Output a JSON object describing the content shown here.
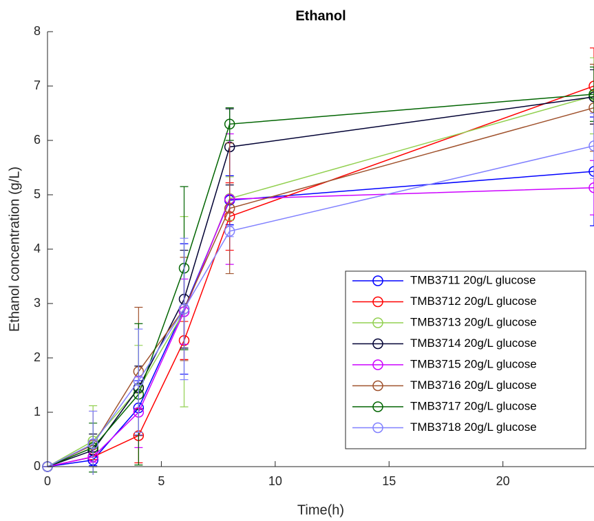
{
  "chart_data": {
    "type": "line",
    "title": "Ethanol",
    "x_label": "Time(h)",
    "y_label": "Ethanol concentration (g/L)",
    "x": [
      0,
      2,
      4,
      6,
      8,
      24
    ],
    "xlim": [
      0,
      24
    ],
    "xticks": [
      0,
      5,
      10,
      15,
      20
    ],
    "ylim": [
      0,
      8
    ],
    "yticks": [
      0,
      1,
      2,
      3,
      4,
      5,
      6,
      7,
      8
    ],
    "legend": "lower right",
    "series": [
      {
        "name": "TMB3711 20g/L glucose",
        "color": "#0000ff",
        "values": [
          0,
          0.12,
          1.08,
          2.9,
          4.9,
          5.43
        ],
        "errors": [
          0,
          0.1,
          0.5,
          1.2,
          0.45,
          1.0
        ]
      },
      {
        "name": "TMB3712 20g/L glucose",
        "color": "#ff0000",
        "values": [
          0,
          0.18,
          0.57,
          2.32,
          4.6,
          7.0
        ],
        "errors": [
          0,
          0.05,
          0.5,
          0.35,
          0.62,
          0.7
        ]
      },
      {
        "name": "TMB3713 20g/L glucose",
        "color": "#92d050",
        "values": [
          0,
          0.47,
          1.43,
          2.85,
          4.93,
          6.82
        ],
        "errors": [
          0,
          0.65,
          0.8,
          1.75,
          0.4,
          0.7
        ]
      },
      {
        "name": "TMB3714 20g/L glucose",
        "color": "#000033",
        "values": [
          0,
          0.3,
          1.45,
          3.08,
          5.88,
          6.8
        ],
        "errors": [
          0,
          0.3,
          0.4,
          0.9,
          0.7,
          0.5
        ]
      },
      {
        "name": "TMB3715 20g/L glucose",
        "color": "#cc00ff",
        "values": [
          0,
          0.18,
          1.0,
          2.85,
          4.92,
          5.13
        ],
        "errors": [
          0,
          0.1,
          0.65,
          0.6,
          1.2,
          0.5
        ]
      },
      {
        "name": "TMB3716 20g/L glucose",
        "color": "#a0522d",
        "values": [
          0,
          0.4,
          1.75,
          2.9,
          4.75,
          6.6
        ],
        "errors": [
          0,
          0.62,
          1.18,
          0.95,
          1.2,
          0.8
        ]
      },
      {
        "name": "TMB3717 20g/L glucose",
        "color": "#006400",
        "values": [
          0,
          0.35,
          1.33,
          3.65,
          6.3,
          6.85
        ],
        "errors": [
          0,
          0.45,
          1.3,
          1.5,
          0.3,
          0.5
        ]
      },
      {
        "name": "TMB3718 20g/L glucose",
        "color": "#8080ff",
        "values": [
          0,
          0.42,
          1.58,
          2.9,
          4.33,
          5.9
        ],
        "errors": [
          0,
          0.6,
          0.95,
          1.3,
          0.1,
          0.6
        ]
      }
    ]
  }
}
